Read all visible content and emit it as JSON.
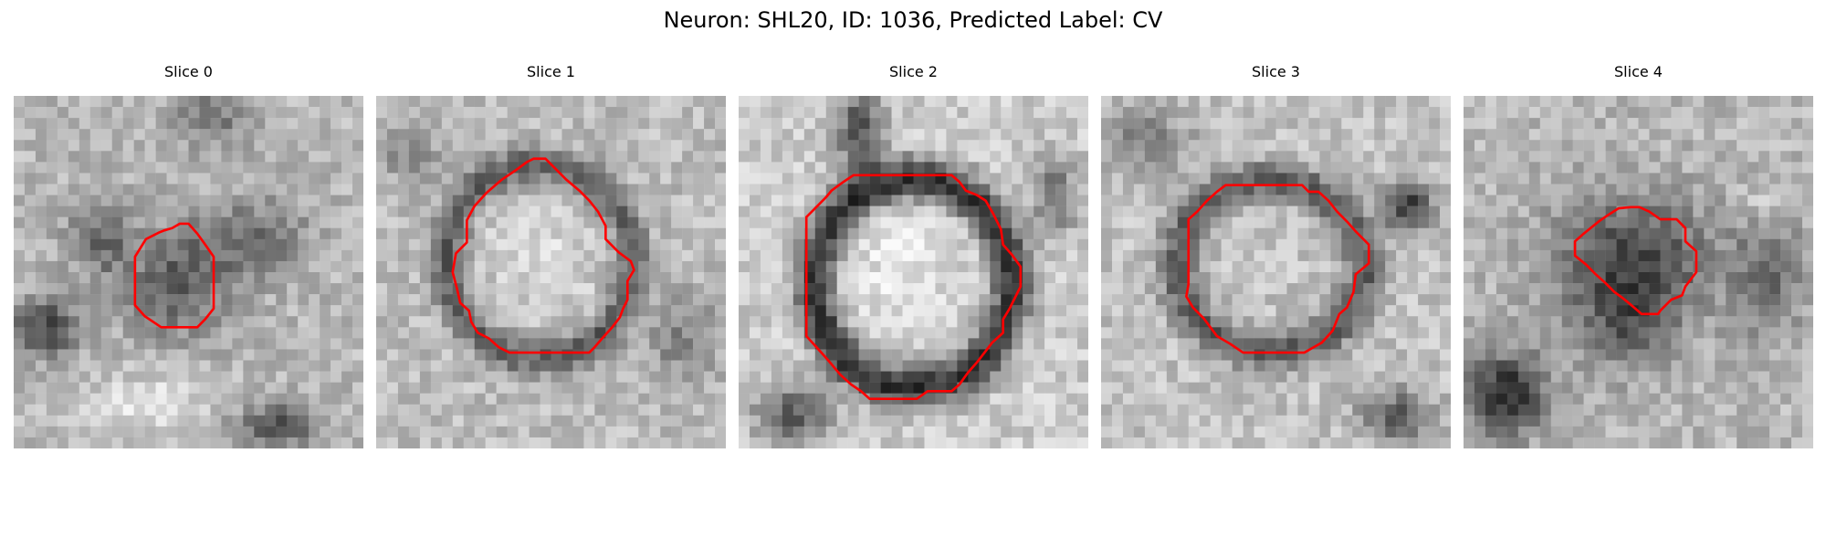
{
  "figure": {
    "title": "Neuron: SHL20, ID: 1036, Predicted Label: CV",
    "colormap": "grayscale",
    "contour_color": "#ff0000"
  },
  "panels": [
    {
      "title": "Slice 0"
    },
    {
      "title": "Slice 1"
    },
    {
      "title": "Slice 2"
    },
    {
      "title": "Slice 3"
    },
    {
      "title": "Slice 4"
    }
  ]
}
